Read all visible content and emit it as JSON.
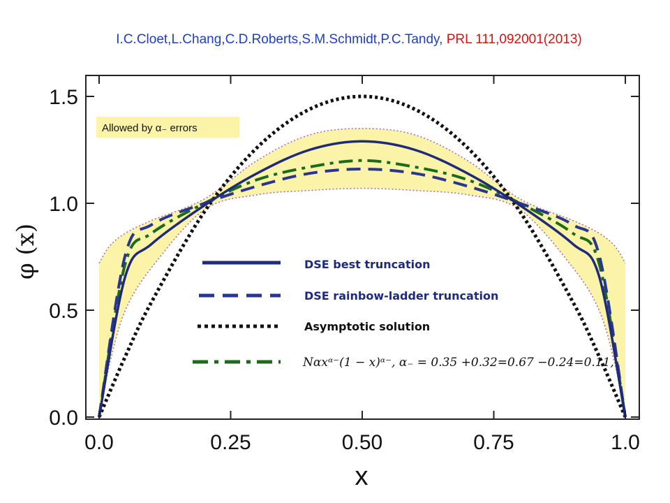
{
  "citation": {
    "authors": "I.C.Cloet,L.Chang,C.D.Roberts,S.M.Schmidt,P.C.Tandy,",
    "reference": "PRL 111,092001(2013)"
  },
  "annotation": "Allowed by α₋ errors",
  "legend": {
    "dse_best": "DSE best truncation",
    "dse_rl": "DSE rainbow-ladder truncation",
    "asymptotic": "Asymptotic solution",
    "fit_formula": "Nαxᵅ⁻(1 − x)ᵅ⁻,  α₋ = 0.35 +0.32=0.67 −0.24=0.11,"
  },
  "colors": {
    "dse_best": "#1f2a7a",
    "dse_rl": "#2a3590",
    "asymptotic": "#111111",
    "fit": "#1a6b1a",
    "band_fill": "#fbf3a8",
    "band_edge": "#a070c8",
    "citation_authors": "#1f3fc0",
    "citation_reference": "#e01010",
    "annotation_box": "#fbf3a8"
  },
  "chart_data": {
    "type": "line",
    "xlabel": "x",
    "ylabel": "φ (x)",
    "xlim": [
      0,
      1
    ],
    "ylim": [
      0,
      1.55
    ],
    "xticks": [
      "0.0",
      "0.25",
      "0.50",
      "0.75",
      "1.0"
    ],
    "yticks": [
      "0.0",
      "0.5",
      "1.0",
      "1.5"
    ],
    "grid": false,
    "legend_position": "center",
    "series": [
      {
        "name": "DSE best truncation",
        "style": "solid",
        "x": [
          0,
          0.05,
          0.1,
          0.2,
          0.3,
          0.4,
          0.5,
          0.6,
          0.7,
          0.8,
          0.9,
          0.95,
          1
        ],
        "y": [
          0,
          0.66,
          0.81,
          0.99,
          1.14,
          1.25,
          1.29,
          1.25,
          1.14,
          0.99,
          0.81,
          0.66,
          0
        ]
      },
      {
        "name": "DSE rainbow-ladder truncation",
        "style": "dashed",
        "x": [
          0,
          0.05,
          0.1,
          0.2,
          0.3,
          0.4,
          0.5,
          0.6,
          0.7,
          0.8,
          0.9,
          0.95,
          1
        ],
        "y": [
          0,
          0.76,
          0.9,
          1.0,
          1.08,
          1.14,
          1.16,
          1.14,
          1.08,
          1.0,
          0.9,
          0.76,
          0
        ]
      },
      {
        "name": "Asymptotic solution",
        "style": "dotted",
        "x": [
          0,
          0.05,
          0.1,
          0.2,
          0.3,
          0.4,
          0.5,
          0.6,
          0.7,
          0.8,
          0.9,
          0.95,
          1
        ],
        "y": [
          0,
          0.285,
          0.54,
          0.96,
          1.26,
          1.44,
          1.5,
          1.44,
          1.26,
          0.96,
          0.54,
          0.285,
          0
        ]
      },
      {
        "name": "Nαxᵅ⁻(1 − x)ᵅ⁻,  α₋ = 0.35",
        "style": "dashdot",
        "x": [
          0,
          0.05,
          0.1,
          0.2,
          0.3,
          0.4,
          0.5,
          0.6,
          0.7,
          0.8,
          0.9,
          0.95,
          1
        ],
        "y": [
          0,
          0.72,
          0.86,
          1.0,
          1.11,
          1.17,
          1.2,
          1.17,
          1.11,
          1.0,
          0.86,
          0.72,
          0
        ]
      }
    ],
    "band": {
      "name": "Allowed by α₋ errors",
      "x": [
        0,
        0.02,
        0.05,
        0.1,
        0.2,
        0.3,
        0.4,
        0.5,
        0.6,
        0.7,
        0.8,
        0.9,
        0.95,
        0.98,
        1
      ],
      "upper": [
        0.72,
        0.8,
        0.86,
        0.92,
        1.02,
        1.2,
        1.32,
        1.35,
        1.32,
        1.2,
        1.02,
        0.92,
        0.86,
        0.8,
        0.72
      ],
      "lower": [
        0,
        0.25,
        0.5,
        0.7,
        0.97,
        1.04,
        1.06,
        1.07,
        1.06,
        1.04,
        0.97,
        0.7,
        0.5,
        0.25,
        0
      ]
    }
  }
}
